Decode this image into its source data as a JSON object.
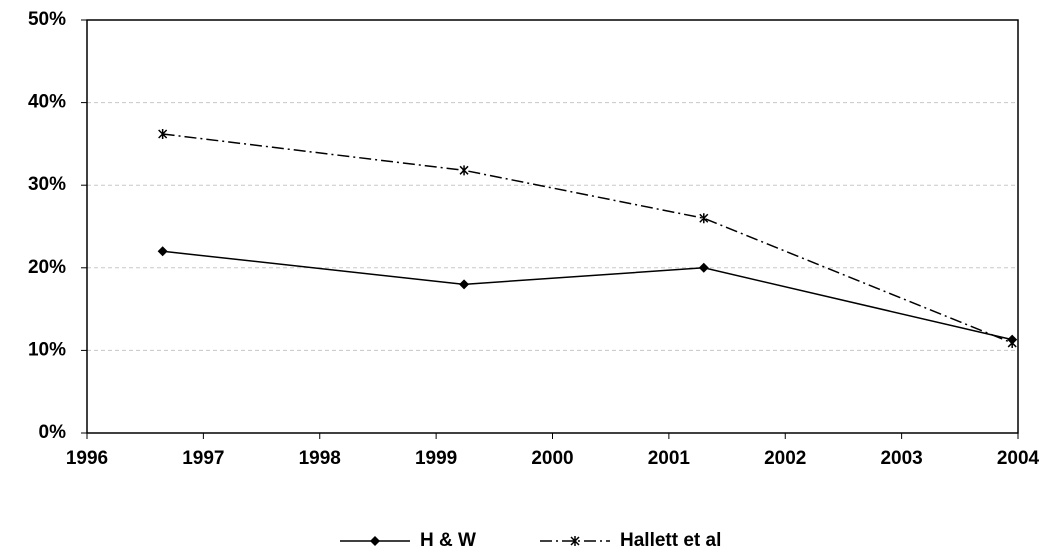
{
  "chart_data": {
    "type": "line",
    "series": [
      {
        "name": "H & W",
        "color": "#000000",
        "dash": "solid",
        "marker": "diamond",
        "x": [
          1996.65,
          1999.24,
          2001.3,
          2003.95
        ],
        "values": [
          22,
          18,
          20,
          11.3
        ]
      },
      {
        "name": "Hallett et al",
        "color": "#000000",
        "dash": "dashdot",
        "marker": "star",
        "x": [
          1996.65,
          1999.24,
          2001.3,
          2003.95
        ],
        "values": [
          36.2,
          31.8,
          26.0,
          10.9
        ]
      }
    ],
    "xlim": [
      1996,
      2004
    ],
    "xticks": [
      1996,
      1997,
      1998,
      1999,
      2000,
      2001,
      2002,
      2003,
      2004
    ],
    "ylim": [
      0,
      50
    ],
    "yticks": [
      {
        "value": 0,
        "label": "0%"
      },
      {
        "value": 10,
        "label": "10%"
      },
      {
        "value": 20,
        "label": "20%"
      },
      {
        "value": 30,
        "label": "30%"
      },
      {
        "value": 40,
        "label": "40%"
      },
      {
        "value": 50,
        "label": "50%"
      }
    ],
    "grid": true,
    "legend": "bottom"
  }
}
